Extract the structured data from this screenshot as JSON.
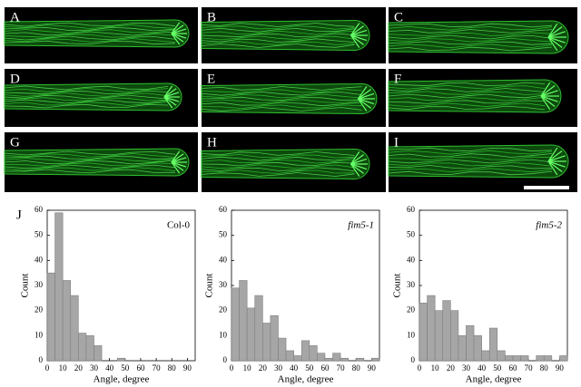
{
  "panels": [
    "A",
    "B",
    "C",
    "D",
    "E",
    "F",
    "G",
    "H",
    "I"
  ],
  "panel_j": "J",
  "chart_data": [
    {
      "type": "histogram",
      "title": "Col-0",
      "title_italic": false,
      "x_label": "Angle, degree",
      "y_label": "Count",
      "bins": [
        0,
        5,
        10,
        15,
        20,
        25,
        30,
        35,
        40,
        45,
        50,
        55,
        60,
        65,
        70,
        75,
        80,
        85,
        90,
        95
      ],
      "values": [
        35,
        59,
        32,
        26,
        11,
        10,
        6,
        0,
        0,
        1,
        0,
        0,
        0,
        0,
        0,
        0,
        0,
        0,
        0
      ],
      "color": "#a6a6a6",
      "xlim": [
        0,
        95
      ],
      "ylim": [
        0,
        60
      ],
      "xticks": [
        0,
        10,
        20,
        30,
        40,
        50,
        60,
        70,
        80,
        90
      ],
      "yticks": [
        0,
        10,
        20,
        30,
        40,
        50,
        60
      ]
    },
    {
      "type": "histogram",
      "title": "fim5-1",
      "title_italic": true,
      "x_label": "Angle, degree",
      "y_label": "Count",
      "bins": [
        0,
        5,
        10,
        15,
        20,
        25,
        30,
        35,
        40,
        45,
        50,
        55,
        60,
        65,
        70,
        75,
        80,
        85,
        90,
        95
      ],
      "values": [
        29,
        32,
        21,
        26,
        15,
        18,
        9,
        4,
        2,
        8,
        6,
        3,
        1,
        3,
        1,
        0,
        1,
        0,
        1
      ],
      "color": "#a6a6a6",
      "xlim": [
        0,
        95
      ],
      "ylim": [
        0,
        60
      ],
      "xticks": [
        0,
        10,
        20,
        30,
        40,
        50,
        60,
        70,
        80,
        90
      ],
      "yticks": [
        0,
        10,
        20,
        30,
        40,
        50,
        60
      ]
    },
    {
      "type": "histogram",
      "title": "fim5-2",
      "title_italic": true,
      "x_label": "Angle, degree",
      "y_label": "Count",
      "bins": [
        0,
        5,
        10,
        15,
        20,
        25,
        30,
        35,
        40,
        45,
        50,
        55,
        60,
        65,
        70,
        75,
        80,
        85,
        90,
        95
      ],
      "values": [
        23,
        26,
        20,
        24,
        20,
        10,
        14,
        10,
        4,
        13,
        4,
        2,
        2,
        2,
        0,
        2,
        2,
        0,
        2
      ],
      "color": "#a6a6a6",
      "xlim": [
        0,
        95
      ],
      "ylim": [
        0,
        60
      ],
      "xticks": [
        0,
        10,
        20,
        30,
        40,
        50,
        60,
        70,
        80,
        90
      ],
      "yticks": [
        0,
        10,
        20,
        30,
        40,
        50,
        60
      ]
    }
  ]
}
